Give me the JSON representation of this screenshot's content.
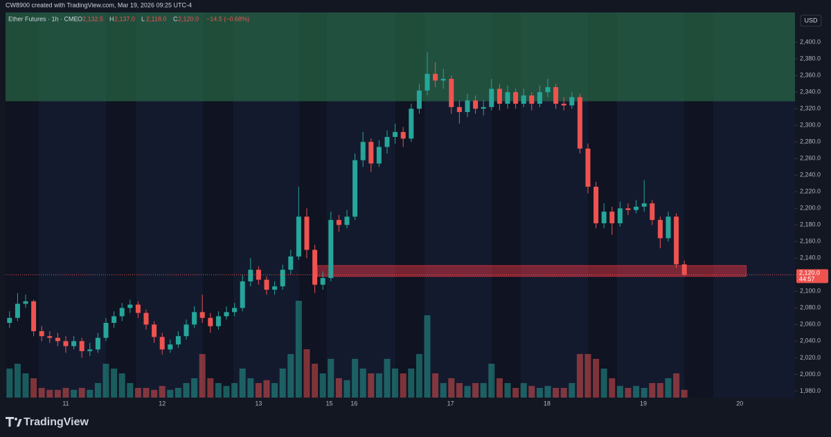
{
  "header": {
    "title": "CW8900 created with TradingView.com, Mar 19, 2026 09:25 UTC-4"
  },
  "footer": {
    "brand": "TradingView"
  },
  "chart_data": {
    "type": "candlestick",
    "legend": {
      "symbol": "Ether Futures · 1h · CME",
      "ohlc_letters": [
        "O",
        "H",
        "L",
        "C"
      ],
      "ohlc_labels": [
        "2,132.5",
        "2,137.0",
        "2,118.0",
        "2,120.0"
      ],
      "change": "−14.5 (−0.68%)"
    },
    "currency": "USD",
    "up_color": "#26a69a",
    "down_color": "#ef5350",
    "ylim": [
      1972,
      2436
    ],
    "yticks": [
      {
        "value": 1980,
        "label": "1,980.0"
      },
      {
        "value": 2000,
        "label": "2,000.0"
      },
      {
        "value": 2020,
        "label": "2,020.0"
      },
      {
        "value": 2040,
        "label": "2,040.0"
      },
      {
        "value": 2060,
        "label": "2,060.0"
      },
      {
        "value": 2080,
        "label": "2,080.0"
      },
      {
        "value": 2100,
        "label": "2,100.0"
      },
      {
        "value": 2120,
        "label": "2,120.0"
      },
      {
        "value": 2140,
        "label": "2,140.0"
      },
      {
        "value": 2160,
        "label": "2,160.0"
      },
      {
        "value": 2180,
        "label": "2,180.0"
      },
      {
        "value": 2200,
        "label": "2,200.0"
      },
      {
        "value": 2220,
        "label": "2,220.0"
      },
      {
        "value": 2240,
        "label": "2,240.0"
      },
      {
        "value": 2260,
        "label": "2,260.0"
      },
      {
        "value": 2280,
        "label": "2,280.0"
      },
      {
        "value": 2300,
        "label": "2,300.0"
      },
      {
        "value": 2320,
        "label": "2,320.0"
      },
      {
        "value": 2340,
        "label": "2,340.0"
      },
      {
        "value": 2360,
        "label": "2,360.0"
      },
      {
        "value": 2380,
        "label": "2,380.0"
      },
      {
        "value": 2400,
        "label": "2,400.0"
      }
    ],
    "xticks": [
      {
        "value": 7,
        "label": "11"
      },
      {
        "value": 19,
        "label": "12"
      },
      {
        "value": 31,
        "label": "13"
      },
      {
        "value": 39.8,
        "label": "15"
      },
      {
        "value": 42.9,
        "label": "16"
      },
      {
        "value": 54.9,
        "label": "17"
      },
      {
        "value": 66.9,
        "label": "18"
      },
      {
        "value": 78.9,
        "label": "19"
      },
      {
        "value": 90.9,
        "label": "20"
      }
    ],
    "last_price": {
      "value": 2120,
      "label": "2,120.0",
      "countdown": "44:57"
    },
    "zones": [
      {
        "from": 2329,
        "to": 2436,
        "color": "#2e7d4f"
      },
      {
        "from": 2118,
        "to": 2131,
        "start": 38.3,
        "end": 91.7,
        "color": "#f23645"
      }
    ],
    "ohlc": [
      [
        2062,
        2076,
        2056,
        2068
      ],
      [
        2068,
        2098,
        2064,
        2085
      ],
      [
        2085,
        2096,
        2080,
        2088
      ],
      [
        2088,
        2090,
        2046,
        2052
      ],
      [
        2052,
        2058,
        2040,
        2046
      ],
      [
        2046,
        2052,
        2038,
        2044
      ],
      [
        2044,
        2050,
        2034,
        2040
      ],
      [
        2040,
        2046,
        2026,
        2034
      ],
      [
        2034,
        2046,
        2030,
        2040
      ],
      [
        2040,
        2044,
        2020,
        2028
      ],
      [
        2028,
        2038,
        2022,
        2030
      ],
      [
        2030,
        2050,
        2026,
        2044
      ],
      [
        2044,
        2068,
        2040,
        2062
      ],
      [
        2062,
        2076,
        2056,
        2070
      ],
      [
        2070,
        2086,
        2064,
        2080
      ],
      [
        2080,
        2090,
        2074,
        2084
      ],
      [
        2084,
        2088,
        2068,
        2074
      ],
      [
        2074,
        2078,
        2054,
        2060
      ],
      [
        2060,
        2064,
        2038,
        2045
      ],
      [
        2045,
        2050,
        2024,
        2030
      ],
      [
        2030,
        2042,
        2026,
        2036
      ],
      [
        2036,
        2052,
        2032,
        2046
      ],
      [
        2046,
        2066,
        2042,
        2060
      ],
      [
        2060,
        2082,
        2056,
        2075
      ],
      [
        2075,
        2096,
        2062,
        2068
      ],
      [
        2068,
        2074,
        2050,
        2058
      ],
      [
        2058,
        2076,
        2054,
        2070
      ],
      [
        2070,
        2082,
        2066,
        2075
      ],
      [
        2075,
        2086,
        2070,
        2080
      ],
      [
        2080,
        2120,
        2076,
        2112
      ],
      [
        2112,
        2140,
        2106,
        2126
      ],
      [
        2126,
        2130,
        2108,
        2114
      ],
      [
        2114,
        2118,
        2096,
        2102
      ],
      [
        2102,
        2112,
        2096,
        2106
      ],
      [
        2106,
        2132,
        2102,
        2126
      ],
      [
        2126,
        2150,
        2120,
        2142
      ],
      [
        2142,
        2226,
        2138,
        2190
      ],
      [
        2190,
        2200,
        2140,
        2150
      ],
      [
        2150,
        2156,
        2098,
        2108
      ],
      [
        2108,
        2124,
        2102,
        2116
      ],
      [
        2116,
        2196,
        2112,
        2186
      ],
      [
        2186,
        2192,
        2172,
        2180
      ],
      [
        2180,
        2198,
        2176,
        2190
      ],
      [
        2190,
        2266,
        2186,
        2258
      ],
      [
        2258,
        2292,
        2250,
        2280
      ],
      [
        2280,
        2284,
        2244,
        2254
      ],
      [
        2254,
        2282,
        2250,
        2274
      ],
      [
        2274,
        2294,
        2266,
        2286
      ],
      [
        2286,
        2302,
        2278,
        2292
      ],
      [
        2292,
        2298,
        2274,
        2284
      ],
      [
        2284,
        2326,
        2280,
        2320
      ],
      [
        2320,
        2350,
        2314,
        2342
      ],
      [
        2342,
        2388,
        2336,
        2362
      ],
      [
        2362,
        2376,
        2346,
        2354
      ],
      [
        2354,
        2368,
        2344,
        2356
      ],
      [
        2356,
        2360,
        2314,
        2322
      ],
      [
        2322,
        2330,
        2302,
        2316
      ],
      [
        2316,
        2338,
        2310,
        2330
      ],
      [
        2330,
        2336,
        2314,
        2320
      ],
      [
        2320,
        2330,
        2312,
        2322
      ],
      [
        2322,
        2356,
        2318,
        2344
      ],
      [
        2344,
        2350,
        2318,
        2326
      ],
      [
        2326,
        2348,
        2320,
        2340
      ],
      [
        2340,
        2344,
        2320,
        2326
      ],
      [
        2326,
        2344,
        2322,
        2336
      ],
      [
        2336,
        2340,
        2318,
        2326
      ],
      [
        2326,
        2348,
        2322,
        2340
      ],
      [
        2340,
        2356,
        2334,
        2346
      ],
      [
        2346,
        2350,
        2320,
        2326
      ],
      [
        2326,
        2334,
        2318,
        2324
      ],
      [
        2324,
        2340,
        2320,
        2334
      ],
      [
        2334,
        2338,
        2266,
        2272
      ],
      [
        2272,
        2278,
        2218,
        2226
      ],
      [
        2226,
        2232,
        2176,
        2182
      ],
      [
        2182,
        2206,
        2176,
        2196
      ],
      [
        2196,
        2202,
        2168,
        2182
      ],
      [
        2182,
        2208,
        2178,
        2200
      ],
      [
        2200,
        2206,
        2192,
        2198
      ],
      [
        2198,
        2210,
        2194,
        2202
      ],
      [
        2202,
        2234,
        2196,
        2206
      ],
      [
        2206,
        2210,
        2180,
        2186
      ],
      [
        2186,
        2190,
        2152,
        2164
      ],
      [
        2164,
        2196,
        2160,
        2190
      ],
      [
        2190,
        2194,
        2128,
        2132.5
      ],
      [
        2132.5,
        2137,
        2118,
        2120
      ]
    ],
    "volume": [
      30,
      35,
      25,
      20,
      10,
      8,
      8,
      10,
      8,
      10,
      8,
      15,
      35,
      30,
      25,
      15,
      10,
      10,
      8,
      12,
      8,
      10,
      15,
      20,
      45,
      20,
      15,
      12,
      15,
      30,
      20,
      15,
      18,
      15,
      30,
      45,
      100,
      50,
      35,
      25,
      40,
      20,
      18,
      40,
      30,
      25,
      25,
      40,
      30,
      25,
      30,
      45,
      85,
      25,
      15,
      20,
      15,
      12,
      15,
      15,
      35,
      20,
      15,
      10,
      15,
      12,
      10,
      12,
      10,
      10,
      15,
      45,
      45,
      40,
      30,
      20,
      12,
      10,
      12,
      10,
      15,
      15,
      20,
      25,
      8
    ]
  }
}
